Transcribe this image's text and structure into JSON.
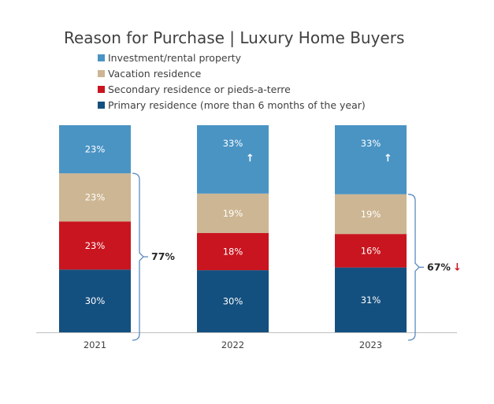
{
  "chart_data": {
    "type": "bar",
    "stacked": true,
    "title": "Reason for Purchase | Luxury Home Buyers",
    "categories": [
      "2021",
      "2022",
      "2023"
    ],
    "series": [
      {
        "name": "Primary residence (more than 6 months of the year)",
        "color": "#14507f",
        "values": [
          30,
          30,
          31
        ],
        "labels": [
          "30%",
          "30%",
          "31%"
        ]
      },
      {
        "name": "Secondary residence or pieds-a-terre",
        "color": "#c9151f",
        "values": [
          23,
          18,
          16
        ],
        "labels": [
          "23%",
          "18%",
          "16%"
        ]
      },
      {
        "name": "Vacation residence",
        "color": "#cdb693",
        "values": [
          23,
          19,
          19
        ],
        "labels": [
          "23%",
          "19%",
          "19%"
        ]
      },
      {
        "name": "Investment/rental property",
        "color": "#4a94c4",
        "values": [
          23,
          33,
          33
        ],
        "labels": [
          "23%",
          "33%",
          "33%"
        ]
      }
    ],
    "legend_order": [
      3,
      2,
      1,
      0
    ],
    "legend_position": "top",
    "annotations": [
      {
        "type": "brace",
        "category": "2021",
        "label": "77%",
        "arrow": "",
        "spans_series": [
          0,
          1,
          2
        ]
      },
      {
        "type": "brace",
        "category": "2023",
        "label": "67%",
        "arrow": "↓",
        "arrow_color": "#c9151f",
        "spans_series": [
          0,
          1,
          2
        ]
      },
      {
        "type": "arrow",
        "category": "2022",
        "series": 3,
        "symbol": "↑"
      },
      {
        "type": "arrow",
        "category": "2023",
        "series": 3,
        "symbol": "↑"
      }
    ],
    "axis_color": "#bfbfbf",
    "brace_color": "#5b8bbf",
    "grid": false
  }
}
